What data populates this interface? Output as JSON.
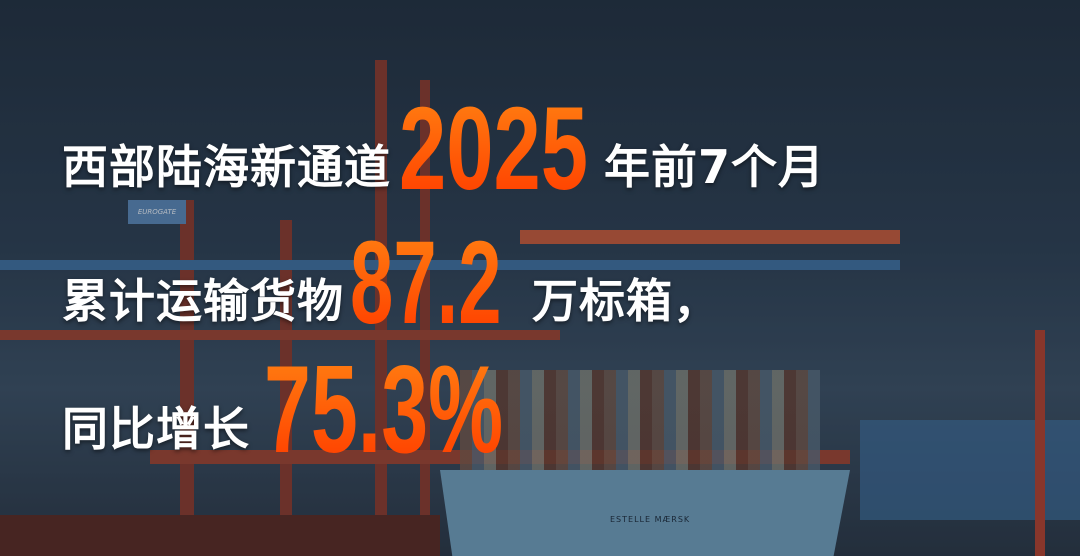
{
  "headline": {
    "line1": {
      "prefix": "西部陆海新通道",
      "number": "2025",
      "suffix": "年前7个月"
    },
    "line2": {
      "prefix": "累计运输货物",
      "number": "87.2",
      "suffix": "万标箱，"
    },
    "line3": {
      "prefix": "同比增长",
      "number": "75.3%"
    }
  },
  "photo": {
    "crane_logo": "EUROGATE",
    "ship_name": "ESTELLE MÆRSK"
  },
  "colors": {
    "accent": "#ff5a0a",
    "text": "#ffffff",
    "sky": "#2d3f52"
  }
}
